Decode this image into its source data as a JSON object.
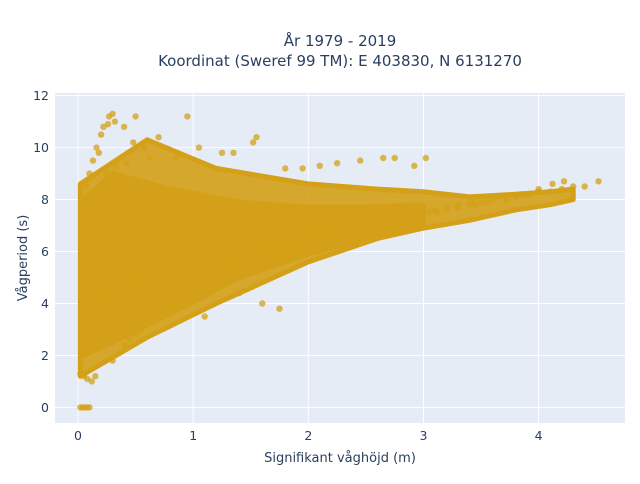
{
  "chart_data": {
    "type": "scatter",
    "title_lines": [
      "År 1979 - 2019",
      "Koordinat (Sweref 99 TM): E 403830, N 6131270"
    ],
    "xlabel": "Signifikant våghöjd (m)",
    "ylabel": "Vågperiod (s)",
    "xlim": [
      -0.2,
      4.75
    ],
    "ylim": [
      -0.6,
      12.1
    ],
    "xticks": [
      0,
      1,
      2,
      3,
      4
    ],
    "yticks": [
      0,
      2,
      4,
      6,
      8,
      10,
      12
    ],
    "grid": true,
    "legend": "none",
    "marker_color": "#d4a017",
    "marker_opacity": 0.75,
    "series": [
      {
        "x": [
          0.02,
          0.04,
          0.06,
          0.08,
          0.1,
          0.02,
          0.05,
          0.08,
          0.12,
          0.15,
          0.03,
          0.05,
          0.08,
          0.1,
          0.06,
          0.09,
          0.12,
          0.07,
          0.1,
          0.13,
          0.16,
          0.2,
          0.1,
          0.14,
          0.18,
          0.12,
          0.16,
          0.2,
          0.25,
          0.18,
          0.22,
          0.27,
          0.32,
          0.3,
          0.36,
          0.42,
          0.4,
          0.45,
          0.5,
          0.55,
          0.6,
          0.65,
          0.7,
          0.8,
          0.9,
          1.0,
          1.1,
          1.2,
          1.3,
          1.4,
          1.5,
          1.6,
          1.7,
          1.8,
          1.9,
          2.0,
          2.1,
          2.2,
          2.3,
          2.4,
          2.5,
          2.6,
          2.7,
          2.8,
          2.9,
          3.0,
          3.1,
          3.2,
          3.3,
          3.4,
          3.5,
          3.6,
          3.7,
          3.8,
          3.9,
          4.0,
          4.1,
          4.2,
          4.3,
          4.4,
          4.52,
          4.22,
          4.12,
          4.0,
          3.92,
          3.85,
          3.72,
          3.65,
          3.55,
          3.45,
          3.42,
          3.3,
          3.2,
          3.12,
          3.05,
          2.95,
          2.85,
          2.78,
          2.7,
          2.6,
          2.52,
          2.42,
          2.35,
          2.25,
          2.15,
          2.05,
          1.95,
          1.85,
          1.75,
          1.65,
          1.55,
          1.45,
          1.35,
          1.25,
          1.15,
          1.05,
          0.95,
          0.85,
          0.75,
          0.65,
          0.55,
          0.45,
          0.35,
          0.28,
          0.22,
          0.18,
          0.3,
          0.26,
          0.5,
          0.48,
          0.95,
          0.7,
          0.58,
          0.4,
          1.55,
          1.52,
          1.05,
          1.35,
          2.75,
          2.65,
          2.92,
          3.02,
          2.45,
          2.25,
          2.1,
          1.95,
          1.8,
          1.25,
          0.85,
          0.62,
          0.42,
          0.33,
          0.25,
          0.55,
          1.4,
          1.6,
          1.75,
          0.4,
          0.8,
          1.1
        ],
        "y": [
          0.0,
          0.0,
          0.0,
          0.0,
          0.0,
          1.3,
          1.2,
          1.1,
          1.0,
          1.2,
          2.0,
          3.0,
          4.0,
          5.0,
          6.0,
          7.0,
          8.0,
          8.5,
          9.0,
          9.5,
          10.0,
          10.5,
          2.5,
          3.5,
          4.5,
          5.5,
          6.5,
          7.5,
          8.8,
          9.8,
          10.8,
          11.2,
          11.0,
          1.8,
          2.1,
          2.3,
          2.4,
          2.6,
          2.8,
          3.0,
          3.2,
          3.4,
          3.5,
          3.8,
          4.2,
          4.6,
          4.9,
          5.1,
          5.3,
          5.5,
          5.7,
          5.9,
          6.0,
          6.2,
          6.3,
          6.5,
          6.6,
          6.7,
          6.8,
          6.9,
          7.0,
          7.1,
          7.2,
          7.3,
          7.4,
          7.5,
          7.6,
          7.7,
          7.8,
          7.8,
          7.9,
          8.0,
          8.1,
          8.1,
          8.2,
          8.3,
          8.3,
          8.4,
          8.5,
          8.5,
          8.7,
          8.7,
          8.6,
          8.4,
          8.2,
          8.2,
          8.0,
          8.1,
          7.9,
          7.8,
          8.0,
          7.7,
          7.6,
          7.5,
          7.5,
          7.4,
          7.3,
          7.3,
          7.2,
          7.1,
          7.0,
          6.9,
          6.9,
          6.8,
          6.7,
          6.6,
          6.5,
          6.4,
          6.3,
          6.2,
          6.1,
          6.0,
          5.9,
          5.8,
          5.7,
          5.6,
          5.5,
          5.4,
          5.3,
          5.2,
          5.0,
          4.8,
          4.6,
          4.4,
          4.2,
          4.0,
          11.3,
          10.9,
          11.2,
          10.2,
          11.2,
          10.4,
          10.0,
          10.8,
          10.4,
          10.2,
          10.0,
          9.8,
          9.6,
          9.6,
          9.3,
          9.6,
          9.5,
          9.4,
          9.3,
          9.2,
          9.2,
          9.8,
          9.6,
          9.6,
          9.4,
          9.3,
          9.0,
          4.6,
          4.4,
          4.0,
          3.8,
          3.6,
          3.7,
          3.5
        ]
      }
    ],
    "density_bands": [
      {
        "x": [
          0.02,
          0.6,
          1.2,
          2.0,
          2.6,
          3.0,
          3.4,
          3.8,
          4.1,
          4.3
        ],
        "y_lo": [
          1.2,
          2.7,
          4.0,
          5.6,
          6.5,
          6.9,
          7.2,
          7.6,
          7.8,
          8.0
        ],
        "y_hi": [
          8.6,
          10.3,
          9.2,
          8.6,
          8.4,
          8.3,
          8.1,
          8.2,
          8.3,
          8.4
        ]
      },
      {
        "x": [
          0.05,
          0.3,
          0.8,
          1.4,
          2.0,
          2.5,
          3.0
        ],
        "y_lo": [
          2.0,
          2.5,
          3.6,
          5.0,
          5.9,
          6.5,
          7.0
        ],
        "y_hi": [
          8.0,
          9.0,
          8.4,
          7.9,
          7.7,
          7.7,
          7.8
        ]
      },
      {
        "x": [
          0.1,
          0.5,
          1.0,
          1.6,
          2.2
        ],
        "y_lo": [
          3.0,
          3.4,
          4.4,
          5.6,
          6.3
        ],
        "y_hi": [
          7.0,
          7.4,
          7.3,
          7.2,
          7.2
        ]
      }
    ]
  }
}
